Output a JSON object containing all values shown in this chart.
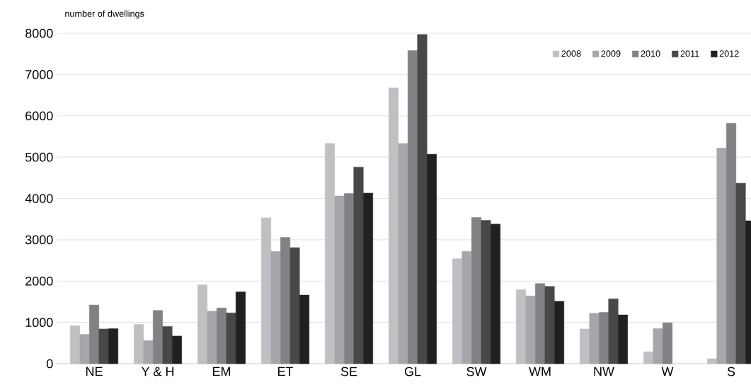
{
  "chart_data": {
    "type": "bar",
    "ylabel": "number of dwellings",
    "categories": [
      "NE",
      "Y & H",
      "EM",
      "ET",
      "SE",
      "GL",
      "SW",
      "WM",
      "NW",
      "W",
      "S"
    ],
    "series": [
      {
        "name": "2008",
        "color": "#bfc0c4",
        "values": [
          920,
          950,
          1910,
          3530,
          5330,
          6680,
          2540,
          1790,
          840,
          290,
          120
        ]
      },
      {
        "name": "2009",
        "color": "#a6a7ab",
        "values": [
          710,
          560,
          1270,
          2720,
          4060,
          5330,
          2720,
          1640,
          1220,
          850,
          5220
        ]
      },
      {
        "name": "2010",
        "color": "#818286",
        "values": [
          1420,
          1290,
          1350,
          3060,
          4120,
          7580,
          3540,
          1940,
          1240,
          990,
          5820
        ]
      },
      {
        "name": "2011",
        "color": "#47484a",
        "values": [
          840,
          900,
          1230,
          2810,
          4760,
          7970,
          3470,
          1870,
          1570,
          null,
          4370
        ]
      },
      {
        "name": "2012",
        "color": "#231f20",
        "values": [
          850,
          670,
          1740,
          1660,
          4130,
          5070,
          3380,
          1510,
          1180,
          null,
          3460
        ]
      }
    ],
    "ylim": [
      0,
      8000
    ],
    "yticks": [
      0,
      1000,
      2000,
      3000,
      4000,
      5000,
      6000,
      7000,
      8000
    ],
    "grid": "y",
    "legend": "top right"
  }
}
